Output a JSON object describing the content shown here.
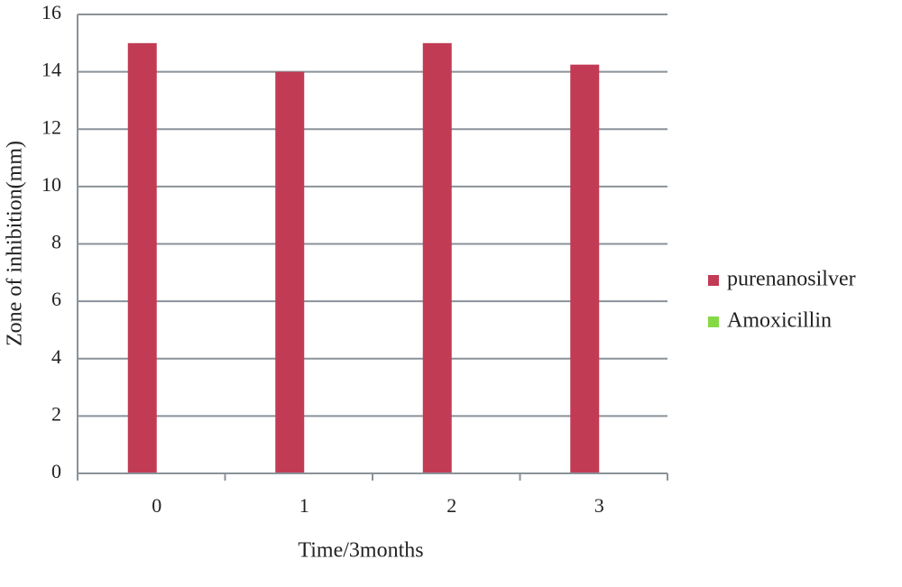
{
  "chart_data": {
    "type": "bar",
    "x_label": "Time/3months",
    "y_label": "Zone of inhibition(mm)",
    "categories": [
      "0",
      "1",
      "2",
      "3"
    ],
    "series": [
      {
        "name": "purenanosilver",
        "color": "#c23b55",
        "values": [
          15,
          14,
          15,
          14.25
        ]
      },
      {
        "name": "Amoxicillin",
        "color": "#84d944",
        "values": [
          0,
          0,
          0,
          0
        ]
      }
    ],
    "ylim": [
      0,
      16
    ],
    "yticks": [
      0,
      2,
      4,
      6,
      8,
      10,
      12,
      14,
      16
    ],
    "grid": true,
    "legend": "right"
  }
}
